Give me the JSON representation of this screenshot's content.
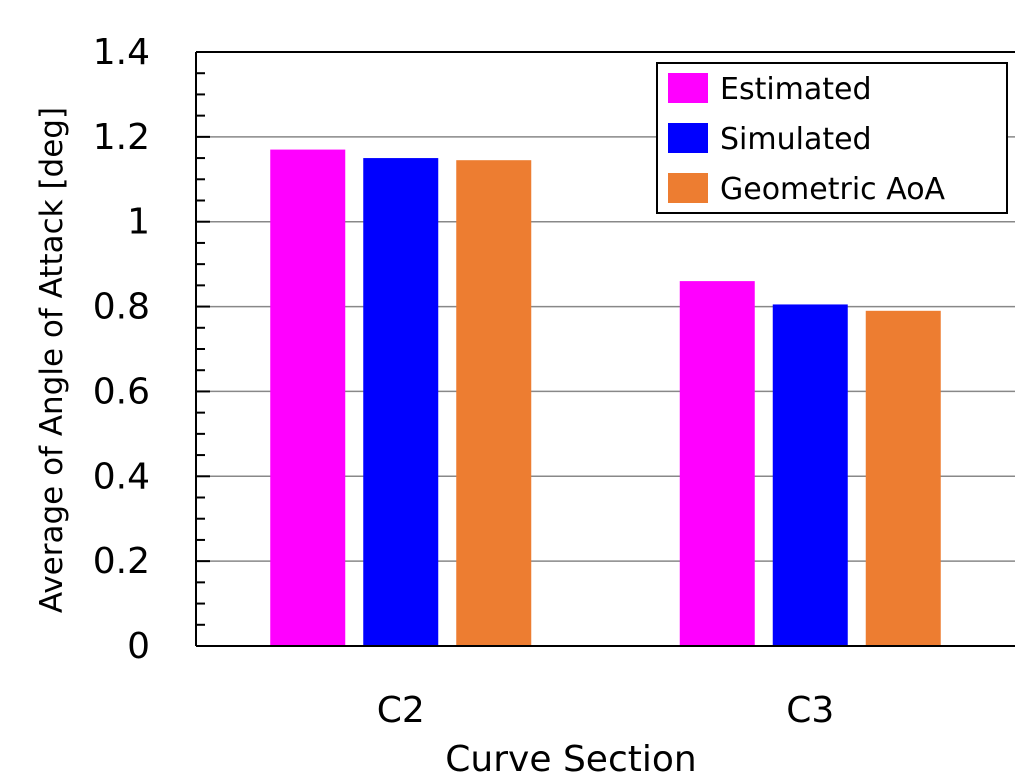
{
  "chart_data": {
    "type": "bar",
    "title": "",
    "xlabel": "Curve Section",
    "ylabel": "Average of Angle of Attack [deg]",
    "ylim": [
      0,
      1.4
    ],
    "ytick_labels": [
      "0",
      "0.2",
      "0.4",
      "0.6",
      "0.8",
      "1",
      "1.2",
      "1.4"
    ],
    "ytick_values": [
      0,
      0.2,
      0.4,
      0.6,
      0.8,
      1.0,
      1.2,
      1.4
    ],
    "categories": [
      "C2",
      "C3"
    ],
    "series": [
      {
        "name": "Estimated",
        "color": "#ff00ff",
        "values": [
          1.17,
          0.86
        ]
      },
      {
        "name": "Simulated",
        "color": "#0000ff",
        "values": [
          1.15,
          0.805
        ]
      },
      {
        "name": "Geometric AoA",
        "color": "#ed7d31",
        "values": [
          1.145,
          0.79
        ]
      }
    ],
    "grid": "horizontal major gridlines",
    "legend_position": "top-right"
  }
}
